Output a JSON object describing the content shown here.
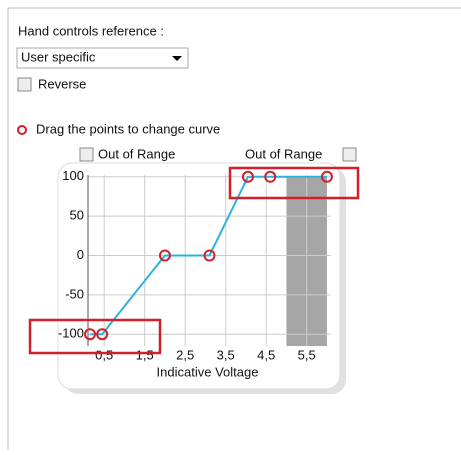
{
  "form": {
    "title": "Hand controls reference :",
    "dropdown": "User specific",
    "reverse": "Reverse",
    "hint": "Drag the points to change curve",
    "out_of_range_left": "Out of Range",
    "out_of_range_right": "Out of Range"
  },
  "chart_data": {
    "type": "line",
    "x_label": "Indicative Voltage",
    "x": [
      0.15,
      0.45,
      2.0,
      3.1,
      4.05,
      4.6,
      6.0
    ],
    "series": [
      {
        "color": "#2bb3dc",
        "values": [
          -100,
          -100,
          0,
          0,
          100,
          100,
          100
        ]
      }
    ],
    "marker_color": "#d0202a",
    "xlim": [
      0.1,
      6.1
    ],
    "ylim": [
      -115,
      115
    ],
    "xticks": [
      {
        "value": 0.5,
        "label": "0,5"
      },
      {
        "value": 1.5,
        "label": "1,5"
      },
      {
        "value": 2.5,
        "label": "2,5"
      },
      {
        "value": 3.5,
        "label": "3,5"
      },
      {
        "value": 4.5,
        "label": "4,5"
      },
      {
        "value": 5.5,
        "label": "5,5"
      }
    ],
    "yticks": [
      100,
      50,
      0,
      -50,
      -100
    ],
    "shaded_x": [
      5.0,
      6.0
    ],
    "grid": true
  }
}
